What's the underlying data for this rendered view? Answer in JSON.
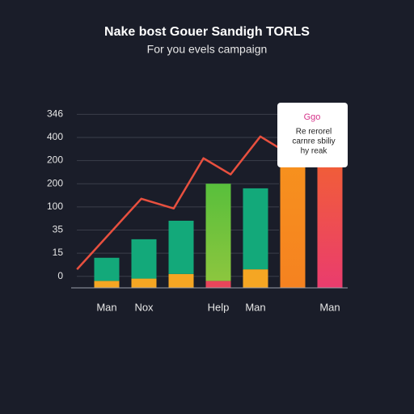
{
  "chart_data": {
    "type": "bar",
    "title": "Nake bost Gouer Sandigh TORLS",
    "subtitle": "For you evels campaign",
    "categories": [
      "Man",
      "Nox",
      null,
      "Help",
      "Man",
      null,
      "Man"
    ],
    "ylim": [
      0,
      8
    ],
    "yticks": [
      {
        "value": 0.5,
        "label": "0"
      },
      {
        "value": 1.5,
        "label": "15"
      },
      {
        "value": 2.5,
        "label": "35"
      },
      {
        "value": 3.5,
        "label": "100"
      },
      {
        "value": 4.5,
        "label": "200"
      },
      {
        "value": 5.5,
        "label": "200"
      },
      {
        "value": 6.5,
        "label": "400"
      },
      {
        "value": 7.5,
        "label": "346"
      }
    ],
    "grid": true,
    "series": [
      {
        "colors": [
          "#f5a623",
          "#f5a623",
          "#f5a623",
          "#e8455a",
          "#f5a623",
          "url(#gOrange)",
          "url(#gPink)"
        ],
        "values": [
          0.3,
          0.4,
          0.6,
          0.3,
          0.8,
          6.2,
          6.2
        ]
      },
      {
        "colors": [
          "#13a97a",
          "#13a97a",
          "#13a97a",
          "url(#gLime)",
          "#13a97a",
          null,
          null
        ],
        "values": [
          1.0,
          1.7,
          2.3,
          4.2,
          3.5,
          null,
          null
        ]
      }
    ],
    "line": {
      "color": "#e8503f",
      "x": [
        -0.8,
        0.93,
        1.8,
        2.6,
        3.33,
        4.13,
        4.74
      ],
      "values": [
        0.8,
        3.85,
        3.43,
        5.6,
        4.9,
        6.54,
        5.94
      ]
    },
    "tooltip": {
      "title": "Ggo",
      "lines": [
        "Re rerorel",
        "carnre sbiliy",
        "hy reak"
      ]
    }
  }
}
